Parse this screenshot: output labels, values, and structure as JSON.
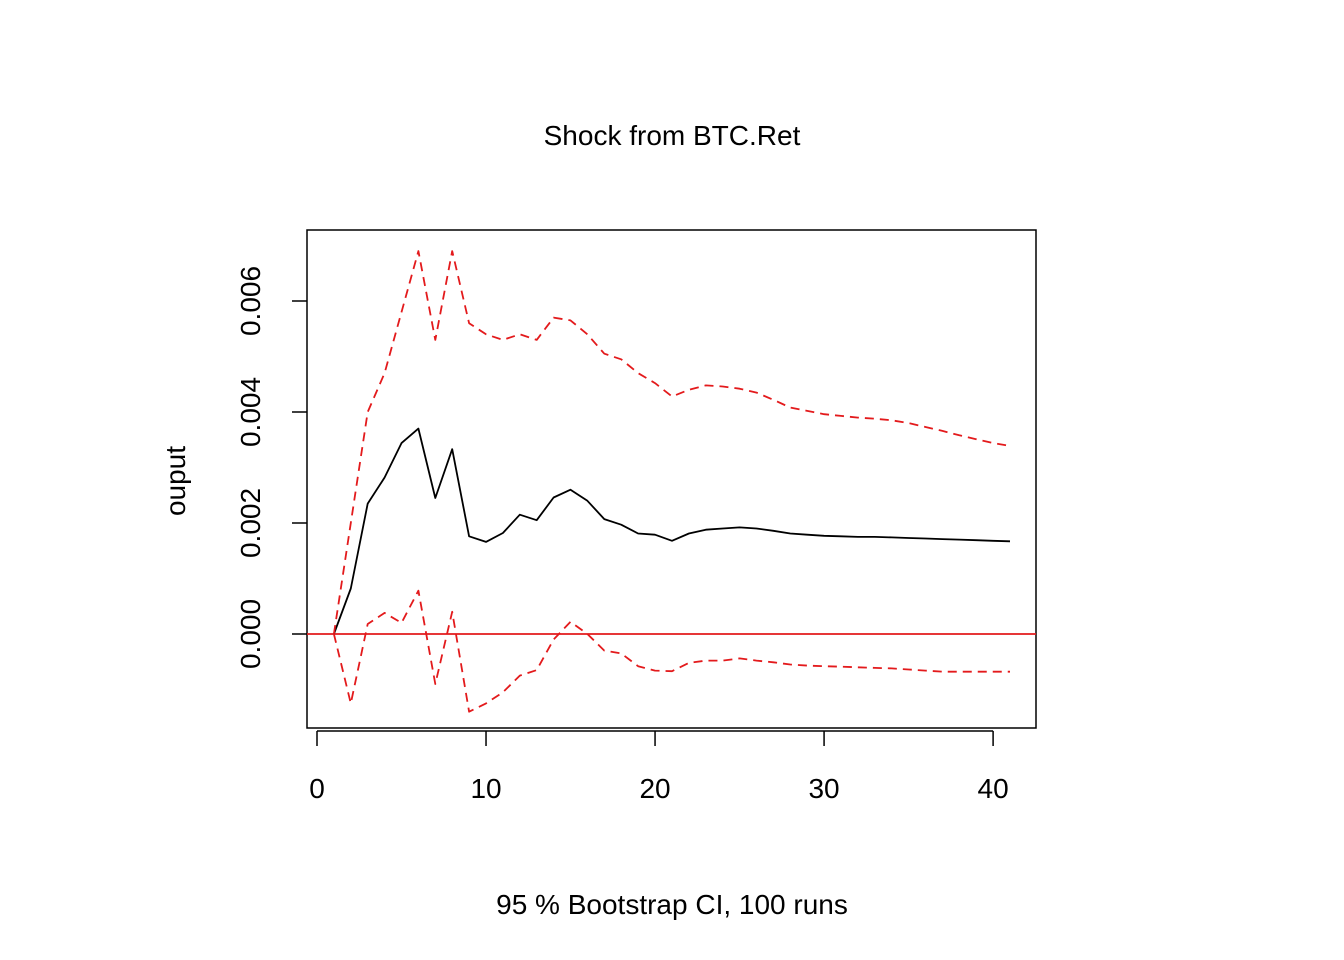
{
  "chart_data": {
    "type": "line",
    "title": "Shock from BTC.Ret",
    "xlabel": "95 % Bootstrap CI,  100 runs",
    "ylabel": "ouput",
    "xlim": [
      0,
      41
    ],
    "ylim": [
      -0.0017,
      0.0073
    ],
    "xticks": [
      0,
      10,
      20,
      30,
      40
    ],
    "yticks": [
      0.0,
      0.002,
      0.004,
      0.006
    ],
    "ytick_labels": [
      "0.000",
      "0.002",
      "0.004",
      "0.006"
    ],
    "grid": false,
    "x": [
      1,
      2,
      3,
      4,
      5,
      6,
      7,
      8,
      9,
      10,
      11,
      12,
      13,
      14,
      15,
      16,
      17,
      18,
      19,
      20,
      21,
      22,
      23,
      24,
      25,
      26,
      27,
      28,
      29,
      30,
      31,
      32,
      33,
      34,
      35,
      36,
      37,
      38,
      39,
      40,
      41
    ],
    "series": [
      {
        "role": "irf",
        "color": "#000000",
        "dashed": false,
        "values": [
          0.0,
          0.00082,
          0.00235,
          0.00282,
          0.00344,
          0.0037,
          0.00245,
          0.00333,
          0.00176,
          0.00166,
          0.00182,
          0.00215,
          0.00205,
          0.00246,
          0.0026,
          0.0024,
          0.00207,
          0.00197,
          0.00181,
          0.00179,
          0.00168,
          0.00181,
          0.00188,
          0.0019,
          0.00192,
          0.0019,
          0.00186,
          0.00181,
          0.00179,
          0.00177,
          0.00176,
          0.00175,
          0.00175,
          0.00174,
          0.00173,
          0.00172,
          0.00171,
          0.0017,
          0.00169,
          0.00168,
          0.00167
        ]
      },
      {
        "role": "upper",
        "color": "#e31a1c",
        "dashed": true,
        "values": [
          0.0,
          0.002,
          0.004,
          0.0047,
          0.0058,
          0.0069,
          0.0053,
          0.0069,
          0.0056,
          0.0054,
          0.0053,
          0.0054,
          0.0053,
          0.0057,
          0.00565,
          0.0054,
          0.00505,
          0.00495,
          0.0047,
          0.00452,
          0.00428,
          0.0044,
          0.00448,
          0.00446,
          0.00442,
          0.00435,
          0.00422,
          0.00408,
          0.00402,
          0.00396,
          0.00393,
          0.0039,
          0.00388,
          0.00385,
          0.0038,
          0.00373,
          0.00366,
          0.00358,
          0.00351,
          0.00344,
          0.00339
        ]
      },
      {
        "role": "lower",
        "color": "#e31a1c",
        "dashed": true,
        "values": [
          0.0,
          -0.00125,
          0.00018,
          0.00038,
          0.0002,
          0.00078,
          -0.0009,
          0.0004,
          -0.0014,
          -0.00125,
          -0.00105,
          -0.00075,
          -0.00065,
          -0.0001,
          0.00022,
          0.0,
          -0.0003,
          -0.00035,
          -0.00058,
          -0.00066,
          -0.00067,
          -0.00052,
          -0.00048,
          -0.00048,
          -0.00044,
          -0.00048,
          -0.00051,
          -0.00055,
          -0.00057,
          -0.00058,
          -0.00059,
          -0.0006,
          -0.00061,
          -0.00062,
          -0.00064,
          -0.00066,
          -0.00068,
          -0.00068,
          -0.00068,
          -0.00068,
          -0.00068
        ]
      }
    ],
    "hline": {
      "y": 0.0,
      "color": "#e31a1c"
    }
  }
}
